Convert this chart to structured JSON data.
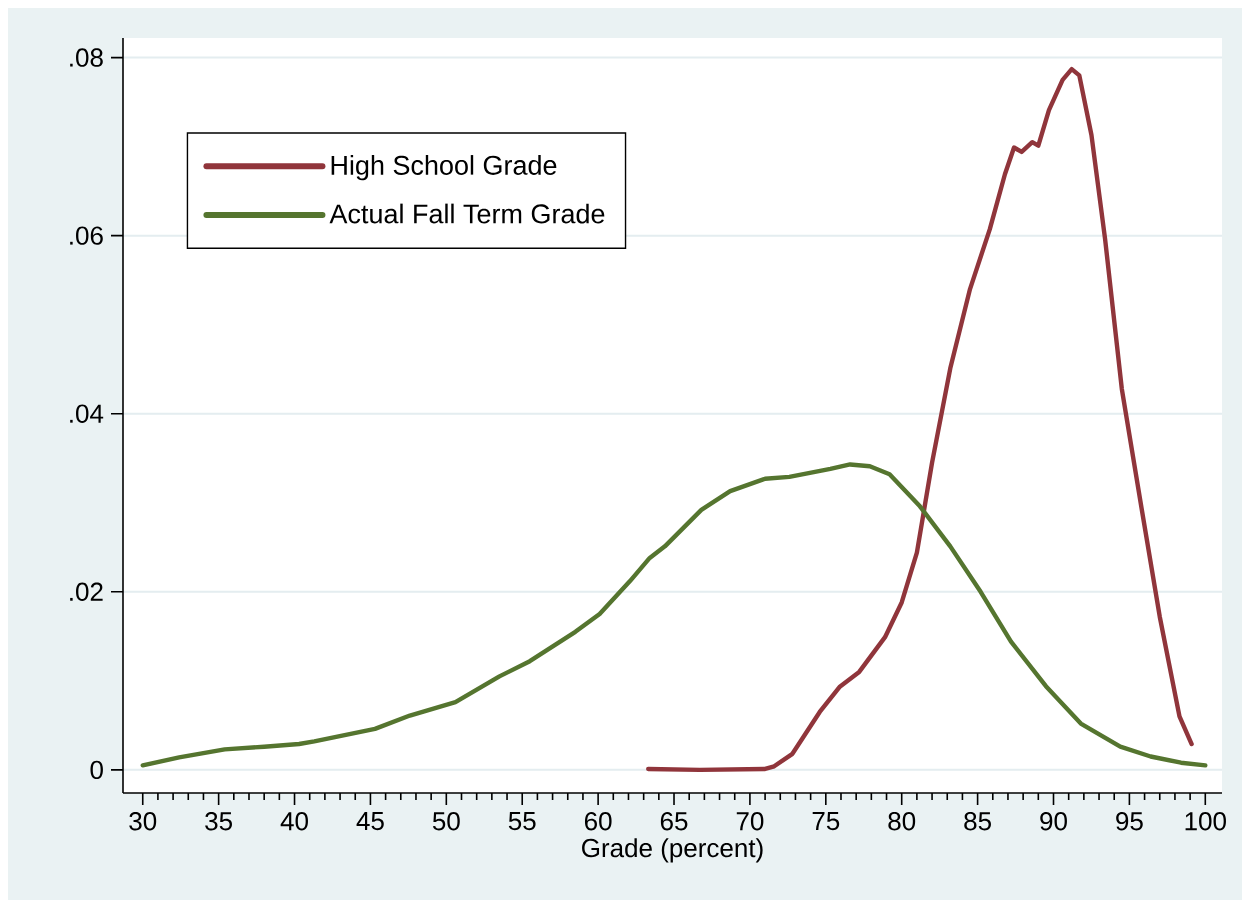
{
  "chart_data": {
    "type": "line",
    "xlabel": "Grade (percent)",
    "xlim": [
      28.7,
      101.1
    ],
    "ylim": [
      -0.0026,
      0.0822
    ],
    "xticks": [
      30,
      {
        "value": 31,
        "label": null
      },
      {
        "value": 32,
        "label": null
      },
      {
        "value": 33,
        "label": null
      },
      {
        "value": 34,
        "label": null
      },
      35,
      {
        "value": 36,
        "label": null
      },
      {
        "value": 37,
        "label": null
      },
      {
        "value": 38,
        "label": null
      },
      {
        "value": 39,
        "label": null
      },
      40,
      {
        "value": 41,
        "label": null
      },
      {
        "value": 42,
        "label": null
      },
      {
        "value": 43,
        "label": null
      },
      {
        "value": 44,
        "label": null
      },
      45,
      {
        "value": 46,
        "label": null
      },
      {
        "value": 47,
        "label": null
      },
      {
        "value": 48,
        "label": null
      },
      {
        "value": 49,
        "label": null
      },
      50,
      {
        "value": 51,
        "label": null
      },
      {
        "value": 52,
        "label": null
      },
      {
        "value": 53,
        "label": null
      },
      {
        "value": 54,
        "label": null
      },
      55,
      {
        "value": 56,
        "label": null
      },
      {
        "value": 57,
        "label": null
      },
      {
        "value": 58,
        "label": null
      },
      {
        "value": 59,
        "label": null
      },
      60,
      {
        "value": 61,
        "label": null
      },
      {
        "value": 62,
        "label": null
      },
      {
        "value": 63,
        "label": null
      },
      {
        "value": 64,
        "label": null
      },
      65,
      {
        "value": 66,
        "label": null
      },
      {
        "value": 67,
        "label": null
      },
      {
        "value": 68,
        "label": null
      },
      {
        "value": 69,
        "label": null
      },
      70,
      {
        "value": 71,
        "label": null
      },
      {
        "value": 72,
        "label": null
      },
      {
        "value": 73,
        "label": null
      },
      {
        "value": 74,
        "label": null
      },
      75,
      {
        "value": 76,
        "label": null
      },
      {
        "value": 77,
        "label": null
      },
      {
        "value": 78,
        "label": null
      },
      {
        "value": 79,
        "label": null
      },
      80,
      {
        "value": 81,
        "label": null
      },
      {
        "value": 82,
        "label": null
      },
      {
        "value": 83,
        "label": null
      },
      {
        "value": 84,
        "label": null
      },
      85,
      {
        "value": 86,
        "label": null
      },
      {
        "value": 87,
        "label": null
      },
      {
        "value": 88,
        "label": null
      },
      {
        "value": 89,
        "label": null
      },
      90,
      {
        "value": 91,
        "label": null
      },
      {
        "value": 92,
        "label": null
      },
      {
        "value": 93,
        "label": null
      },
      {
        "value": 94,
        "label": null
      },
      95,
      {
        "value": 96,
        "label": null
      },
      {
        "value": 97,
        "label": null
      },
      {
        "value": 98,
        "label": null
      },
      {
        "value": 99,
        "label": null
      },
      100
    ],
    "yticks": [
      0,
      {
        "value": 0.02,
        "label": ".02"
      },
      {
        "value": 0.04,
        "label": ".04"
      },
      {
        "value": 0.06,
        "label": ".06"
      },
      {
        "value": 0.08,
        "label": ".08"
      }
    ],
    "grid": "y",
    "legend": "top left",
    "marker": "none",
    "line_style": "solid",
    "series": [
      {
        "name": "High School Grade",
        "color": "#90353b",
        "x": [
          63.3,
          66.7,
          71.0,
          71.6,
          72.8,
          74.6,
          75.9,
          77.2,
          78.9,
          80.0,
          81.0,
          82.0,
          83.2,
          84.5,
          85.8,
          86.8,
          87.4,
          87.9,
          88.6,
          89.0,
          89.7,
          90.6,
          91.2,
          91.7,
          92.5,
          93.4,
          94.5,
          95.8,
          97.0,
          98.3,
          99.1
        ],
        "values": [
          0.0001,
          0.0,
          0.0001,
          0.0004,
          0.0018,
          0.0065,
          0.0093,
          0.011,
          0.0149,
          0.0188,
          0.0244,
          0.0345,
          0.0451,
          0.054,
          0.0607,
          0.0669,
          0.0699,
          0.0694,
          0.0705,
          0.0701,
          0.0741,
          0.0775,
          0.0787,
          0.078,
          0.0713,
          0.0596,
          0.0428,
          0.0294,
          0.0172,
          0.006,
          0.0029
        ]
      },
      {
        "name": "Actual Fall Term Grade",
        "color": "#55752f",
        "x": [
          30,
          32.4,
          35.4,
          38.0,
          40.3,
          41.3,
          45.3,
          47.6,
          50.6,
          53.5,
          55.5,
          58.5,
          60.1,
          62.1,
          63.4,
          64.4,
          66.8,
          68.7,
          71.0,
          72.6,
          75.3,
          76.6,
          77.9,
          79.2,
          81.2,
          83.2,
          85.2,
          87.2,
          89.5,
          91.8,
          94.4,
          96.4,
          98.4,
          100
        ],
        "values": [
          0.0005,
          0.0014,
          0.0023,
          0.0026,
          0.0029,
          0.0032,
          0.0046,
          0.0061,
          0.0076,
          0.0105,
          0.0122,
          0.0155,
          0.0175,
          0.0212,
          0.0238,
          0.0251,
          0.0292,
          0.0313,
          0.0327,
          0.0329,
          0.0338,
          0.0343,
          0.0341,
          0.0332,
          0.0296,
          0.0251,
          0.02,
          0.0144,
          0.0094,
          0.0052,
          0.0026,
          0.0015,
          0.0008,
          0.0005
        ]
      }
    ]
  }
}
